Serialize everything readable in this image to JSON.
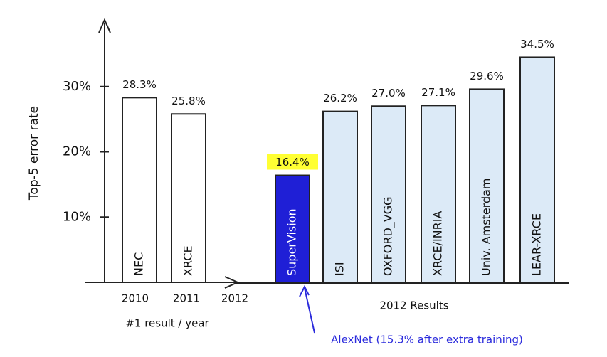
{
  "chart_data": {
    "type": "bar",
    "ylabel": "Top-5 error rate",
    "categories": [
      "NEC",
      "XRCE",
      "SuperVision",
      "ISI",
      "OXFORD_VGG",
      "XRCE/INRIA",
      "Univ. Amsterdam",
      "LEAR-XRCE"
    ],
    "values": [
      28.3,
      25.8,
      16.4,
      26.2,
      27.0,
      27.1,
      29.6,
      34.5
    ],
    "value_labels": [
      "28.3%",
      "25.8%",
      "16.4%",
      "26.2%",
      "27.0%",
      "27.1%",
      "29.6%",
      "34.5%"
    ],
    "colors": [
      "#ffffff",
      "#ffffff",
      "#1f1fd6",
      "#dceaf7",
      "#dceaf7",
      "#dceaf7",
      "#dceaf7",
      "#dceaf7"
    ],
    "highlight_color": "#ffff33",
    "ylim": [
      0,
      40
    ],
    "yticks": [
      {
        "value": 10,
        "label": "10%"
      },
      {
        "value": 20,
        "label": "20%"
      },
      {
        "value": 30,
        "label": "30%"
      }
    ],
    "year_labels": [
      "2010",
      "2011",
      "2012"
    ],
    "xlabel": "#1 result / year",
    "group_label": "2012 Results",
    "annotation": {
      "text": "AlexNet (15.3% after extra training)",
      "color": "#2b2bdc"
    }
  }
}
